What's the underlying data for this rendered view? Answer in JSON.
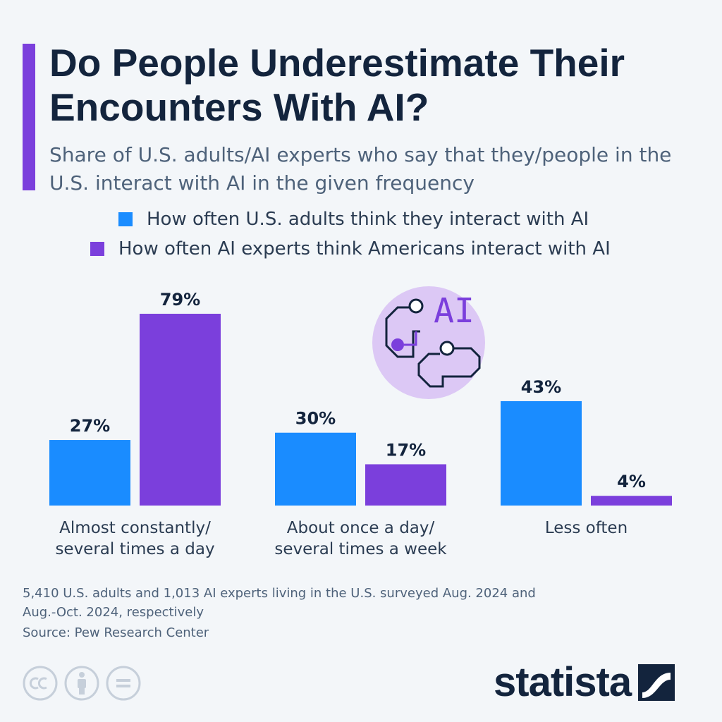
{
  "header": {
    "title": "Do People Underestimate Their Encounters With AI?",
    "subtitle": "Share of U.S. adults/AI experts who say that they/people in the U.S. interact with AI in the given frequency"
  },
  "colors": {
    "accent": "#7b3fdc",
    "adults": "#1a8cff",
    "experts": "#7b3fdc",
    "text_dark": "#13243d"
  },
  "illustration": {
    "text": "AI",
    "icon": "ai-brain-circuit-icon"
  },
  "chart_data": {
    "type": "bar",
    "title": "Do People Underestimate Their Encounters With AI?",
    "categories": [
      [
        "Almost constantly/",
        "several times a day"
      ],
      [
        "About once a day/",
        "several times a week"
      ],
      [
        "Less often"
      ]
    ],
    "series": [
      {
        "name": "How often U.S. adults think they interact with AI",
        "values": [
          27,
          30,
          43
        ],
        "labels": [
          "27%",
          "30%",
          "43%"
        ]
      },
      {
        "name": "How often AI experts think Americans interact with AI",
        "values": [
          79,
          17,
          4
        ],
        "labels": [
          "79%",
          "17%",
          "4%"
        ]
      }
    ],
    "unit": "%",
    "ylim": [
      0,
      79
    ],
    "grid": false,
    "legend_position": "top"
  },
  "footer": {
    "note": "5,410 U.S. adults and 1,013 AI experts living in the U.S. surveyed Aug. 2024 and Aug.-Oct. 2024, respectively",
    "source": "Source: Pew Research Center",
    "brand": "statista",
    "license_icons": [
      "cc-icon",
      "attribution-icon",
      "no-derivatives-icon"
    ]
  }
}
